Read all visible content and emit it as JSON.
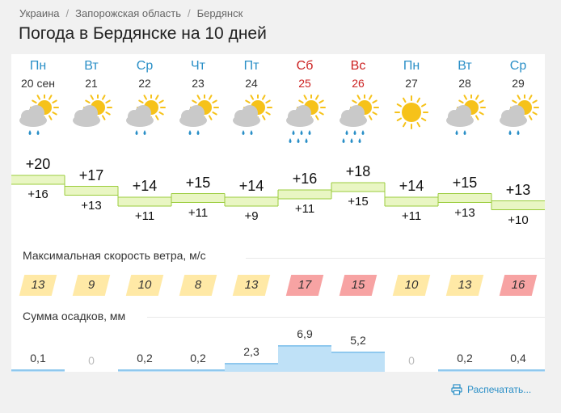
{
  "breadcrumb": [
    "Украина",
    "Запорожская область",
    "Бердянск"
  ],
  "title": "Погода в Бердянске на 10 дней",
  "days": [
    {
      "dow": "Пн",
      "date": "20 сен",
      "weekend": false,
      "icon": "partly-cloudy-rain-icon",
      "tmax": "+20",
      "tmin": "+16",
      "tmax_num": 20,
      "tmin_num": 16,
      "wind": "13",
      "wind_level": "moderate",
      "precip": "0,1",
      "precip_num": 0.1
    },
    {
      "dow": "Вт",
      "date": "21",
      "weekend": false,
      "icon": "partly-cloudy-icon",
      "tmax": "+17",
      "tmin": "+13",
      "tmax_num": 17,
      "tmin_num": 13,
      "wind": "9",
      "wind_level": "moderate",
      "precip": "0",
      "precip_num": 0
    },
    {
      "dow": "Ср",
      "date": "22",
      "weekend": false,
      "icon": "partly-cloudy-rain-icon",
      "tmax": "+14",
      "tmin": "+11",
      "tmax_num": 14,
      "tmin_num": 11,
      "wind": "10",
      "wind_level": "moderate",
      "precip": "0,2",
      "precip_num": 0.2
    },
    {
      "dow": "Чт",
      "date": "23",
      "weekend": false,
      "icon": "partly-cloudy-rain-icon",
      "tmax": "+15",
      "tmin": "+11",
      "tmax_num": 15,
      "tmin_num": 11,
      "wind": "8",
      "wind_level": "moderate",
      "precip": "0,2",
      "precip_num": 0.2
    },
    {
      "dow": "Пт",
      "date": "24",
      "weekend": false,
      "icon": "partly-cloudy-rain-icon",
      "tmax": "+14",
      "tmin": "+9",
      "tmax_num": 14,
      "tmin_num": 9,
      "wind": "13",
      "wind_level": "moderate",
      "precip": "2,3",
      "precip_num": 2.3
    },
    {
      "dow": "Сб",
      "date": "25",
      "weekend": true,
      "icon": "partly-cloudy-heavy-rain-icon",
      "tmax": "+16",
      "tmin": "+11",
      "tmax_num": 16,
      "tmin_num": 11,
      "wind": "17",
      "wind_level": "strong",
      "precip": "6,9",
      "precip_num": 6.9
    },
    {
      "dow": "Вс",
      "date": "26",
      "weekend": true,
      "icon": "partly-cloudy-heavy-rain-icon",
      "tmax": "+18",
      "tmin": "+15",
      "tmax_num": 18,
      "tmin_num": 15,
      "wind": "15",
      "wind_level": "strong",
      "precip": "5,2",
      "precip_num": 5.2
    },
    {
      "dow": "Пн",
      "date": "27",
      "weekend": false,
      "icon": "sun-icon",
      "tmax": "+14",
      "tmin": "+11",
      "tmax_num": 14,
      "tmin_num": 11,
      "wind": "10",
      "wind_level": "moderate",
      "precip": "0",
      "precip_num": 0
    },
    {
      "dow": "Вт",
      "date": "28",
      "weekend": false,
      "icon": "partly-cloudy-rain-icon",
      "tmax": "+15",
      "tmin": "+13",
      "tmax_num": 15,
      "tmin_num": 13,
      "wind": "13",
      "wind_level": "moderate",
      "precip": "0,2",
      "precip_num": 0.2
    },
    {
      "dow": "Ср",
      "date": "29",
      "weekend": false,
      "icon": "partly-cloudy-rain-icon",
      "tmax": "+13",
      "tmin": "+10",
      "tmax_num": 13,
      "tmin_num": 10,
      "wind": "16",
      "wind_level": "strong",
      "precip": "0,4",
      "precip_num": 0.4
    }
  ],
  "wind_label": "Максимальная скорость ветра, м/с",
  "precip_label": "Сумма осадков, мм",
  "print_label": "Распечатать...",
  "colors": {
    "weekday": "#2a8fc7",
    "weekend": "#c22222",
    "temp_band": "#e9f6c3",
    "temp_band_border": "#9bcc3c",
    "wind_moderate": "#ffe9a6",
    "wind_strong": "#f7a3a3",
    "precip_bar": "#bfe1f7",
    "sun": "#f6c21a",
    "cloud": "#c9c9c9",
    "rain": "#2a8fc7"
  }
}
